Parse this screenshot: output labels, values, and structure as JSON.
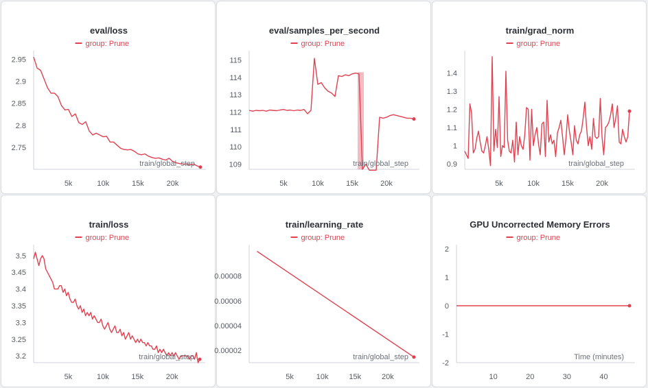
{
  "series_color": "#e0404f",
  "chart_data": [
    {
      "type": "line",
      "title": "eval/loss",
      "legend": "group: Prune",
      "xlabel": "train/global_step",
      "xlim": [
        0,
        24000
      ],
      "ylim": [
        2.7,
        2.96
      ],
      "xticks": [
        5000,
        10000,
        15000,
        20000
      ],
      "xtick_labels": [
        "5k",
        "10k",
        "15k",
        "20k"
      ],
      "yticks": [
        2.75,
        2.8,
        2.85,
        2.9,
        2.95
      ],
      "ytick_labels": [
        "2.75",
        "2.8",
        "2.85",
        "2.9",
        "2.95"
      ],
      "x": [
        0,
        500,
        1000,
        1500,
        2000,
        2500,
        3000,
        3500,
        4000,
        4500,
        5000,
        5500,
        6000,
        6500,
        7000,
        7500,
        8000,
        8500,
        9000,
        9500,
        10000,
        10500,
        11000,
        11500,
        12000,
        12500,
        13000,
        13500,
        14000,
        14500,
        15000,
        15500,
        16000,
        16500,
        17000,
        17500,
        18000,
        18500,
        19000,
        19500,
        20000,
        20500,
        21000,
        21500,
        22000,
        22500,
        23000,
        23500,
        24000
      ],
      "values": [
        2.955,
        2.93,
        2.925,
        2.905,
        2.885,
        2.873,
        2.873,
        2.865,
        2.845,
        2.835,
        2.836,
        2.82,
        2.826,
        2.806,
        2.802,
        2.808,
        2.787,
        2.778,
        2.782,
        2.778,
        2.774,
        2.775,
        2.762,
        2.762,
        2.755,
        2.748,
        2.745,
        2.744,
        2.745,
        2.741,
        2.735,
        2.733,
        2.735,
        2.73,
        2.727,
        2.725,
        2.726,
        2.723,
        2.721,
        2.725,
        2.718,
        2.715,
        2.713,
        2.712,
        2.712,
        2.71,
        2.712,
        2.708,
        2.705
      ],
      "end_marker": true
    },
    {
      "type": "line",
      "title": "eval/samples_per_second",
      "legend": "group: Prune",
      "xlabel": "train/global_step",
      "xlim": [
        0,
        24000
      ],
      "ylim": [
        108.7,
        115.3
      ],
      "xticks": [
        5000,
        10000,
        15000,
        20000
      ],
      "xtick_labels": [
        "5k",
        "10k",
        "15k",
        "20k"
      ],
      "yticks": [
        109,
        110,
        111,
        112,
        113,
        114,
        115
      ],
      "ytick_labels": [
        "109",
        "110",
        "111",
        "112",
        "113",
        "114",
        "115"
      ],
      "x": [
        0,
        500,
        1000,
        1500,
        2000,
        2500,
        3000,
        3500,
        4000,
        4500,
        5000,
        5500,
        6000,
        6500,
        7000,
        7500,
        8000,
        8500,
        9000,
        9500,
        10000,
        10500,
        11000,
        11500,
        12000,
        12500,
        13000,
        13500,
        14000,
        14500,
        15000,
        15500,
        16000,
        16500,
        17000,
        17500,
        18000,
        18500,
        19000,
        19500,
        20000,
        20500,
        21000,
        21500,
        22000,
        22500,
        23000,
        23500,
        24000
      ],
      "values": [
        112.1,
        112.05,
        112.1,
        112.08,
        112.1,
        112.05,
        112.12,
        112.1,
        112.08,
        112.12,
        112.15,
        112.1,
        112.12,
        112.08,
        112.12,
        112.1,
        112.15,
        111.9,
        112.1,
        115.1,
        113.6,
        113.7,
        113.4,
        113.2,
        113.1,
        112.9,
        114.1,
        114.05,
        114.15,
        114.1,
        114.2,
        114.25,
        114.2,
        108.7,
        109.0,
        108.65,
        108.65,
        108.65,
        111.7,
        111.65,
        111.7,
        111.8,
        111.85,
        111.8,
        111.75,
        111.7,
        111.65,
        111.65,
        111.6
      ],
      "band_x_range": [
        15800,
        16700
      ],
      "band_y_range": [
        108.7,
        114.3
      ],
      "end_marker": true
    },
    {
      "type": "line",
      "title": "train/grad_norm",
      "legend": "group: Prune",
      "xlabel": "train/global_step",
      "xlim": [
        0,
        24000
      ],
      "ylim": [
        0.87,
        1.5
      ],
      "xticks": [
        5000,
        10000,
        15000,
        20000
      ],
      "xtick_labels": [
        "5k",
        "10k",
        "15k",
        "20k"
      ],
      "yticks": [
        0.9,
        1,
        1.1,
        1.2,
        1.3,
        1.4
      ],
      "ytick_labels": [
        "0.9",
        "1",
        "1.1",
        "1.2",
        "1.3",
        "1.4"
      ],
      "x": [
        0,
        250,
        500,
        750,
        1000,
        1250,
        1500,
        1750,
        2000,
        2250,
        2500,
        2750,
        3000,
        3250,
        3500,
        3750,
        4000,
        4250,
        4500,
        4750,
        5000,
        5250,
        5500,
        5750,
        6000,
        6250,
        6500,
        6750,
        7000,
        7250,
        7500,
        7750,
        8000,
        8250,
        8500,
        8750,
        9000,
        9250,
        9500,
        9750,
        10000,
        10250,
        10500,
        10750,
        11000,
        11250,
        11500,
        11750,
        12000,
        12250,
        12500,
        12750,
        13000,
        13250,
        13500,
        13750,
        14000,
        14250,
        14500,
        14750,
        15000,
        15250,
        15500,
        15750,
        16000,
        16250,
        16500,
        16750,
        17000,
        17250,
        17500,
        17750,
        18000,
        18250,
        18500,
        18750,
        19000,
        19250,
        19500,
        19750,
        20000,
        20250,
        20500,
        20750,
        21000,
        21250,
        21500,
        21750,
        22000,
        22250,
        22500,
        22750,
        23000,
        23250,
        23500,
        23750,
        24000
      ],
      "values": [
        0.97,
        0.95,
        0.93,
        1.23,
        1.18,
        0.96,
        0.98,
        1.04,
        1.08,
        1.02,
        0.97,
        0.96,
        1.0,
        1.05,
        0.98,
        0.89,
        1.49,
        0.97,
        1.09,
        0.99,
        1.27,
        0.94,
        1.0,
        0.99,
        1.41,
        1.03,
        0.97,
        0.96,
        1.03,
        0.91,
        1.13,
        0.95,
        1.05,
        1.0,
        0.98,
        1.06,
        1.21,
        1.2,
        0.92,
        1.2,
        1.0,
        1.06,
        1.1,
        1.01,
        0.95,
        1.12,
        1.13,
        0.94,
        1.25,
        1.02,
        1.06,
        1.01,
        1.03,
        0.94,
        1.07,
        1.1,
        1.14,
        1.05,
        0.95,
        1.04,
        1.17,
        1.08,
        1.02,
        0.95,
        1.11,
        1.03,
        1.01,
        1.06,
        1.08,
        1.15,
        1.24,
        1.1,
        1.0,
        1.05,
        0.98,
        1.15,
        1.05,
        1.04,
        1.05,
        1.26,
        1.05,
        0.95,
        1.1,
        1.11,
        1.13,
        1.17,
        1.23,
        1.1,
        1.15,
        1.22,
        1.02,
        1.01,
        1.09,
        1.05,
        1.02,
        1.05,
        1.19
      ],
      "end_marker": true
    },
    {
      "type": "line",
      "title": "train/loss",
      "legend": "group: Prune",
      "xlabel": "train/global_step",
      "xlim": [
        0,
        24000
      ],
      "ylim": [
        3.18,
        3.52
      ],
      "xticks": [
        5000,
        10000,
        15000,
        20000
      ],
      "xtick_labels": [
        "5k",
        "10k",
        "15k",
        "20k"
      ],
      "yticks": [
        3.2,
        3.25,
        3.3,
        3.35,
        3.4,
        3.45,
        3.5
      ],
      "ytick_labels": [
        "3.2",
        "3.25",
        "3.3",
        "3.35",
        "3.4",
        "3.45",
        "3.5"
      ],
      "x": [
        0,
        250,
        500,
        750,
        1000,
        1250,
        1500,
        1750,
        2000,
        2250,
        2500,
        2750,
        3000,
        3250,
        3500,
        3750,
        4000,
        4250,
        4500,
        4750,
        5000,
        5250,
        5500,
        5750,
        6000,
        6250,
        6500,
        6750,
        7000,
        7250,
        7500,
        7750,
        8000,
        8250,
        8500,
        8750,
        9000,
        9250,
        9500,
        9750,
        10000,
        10250,
        10500,
        10750,
        11000,
        11250,
        11500,
        11750,
        12000,
        12250,
        12500,
        12750,
        13000,
        13250,
        13500,
        13750,
        14000,
        14250,
        14500,
        14750,
        15000,
        15250,
        15500,
        15750,
        16000,
        16250,
        16500,
        16750,
        17000,
        17250,
        17500,
        17750,
        18000,
        18250,
        18500,
        18750,
        19000,
        19250,
        19500,
        19750,
        20000,
        20250,
        20500,
        20750,
        21000,
        21250,
        21500,
        21750,
        22000,
        22250,
        22500,
        22750,
        23000,
        23250,
        23500,
        23750,
        24000
      ],
      "values": [
        3.49,
        3.51,
        3.49,
        3.47,
        3.49,
        3.5,
        3.49,
        3.46,
        3.45,
        3.44,
        3.43,
        3.42,
        3.4,
        3.4,
        3.4,
        3.41,
        3.41,
        3.39,
        3.4,
        3.38,
        3.39,
        3.37,
        3.36,
        3.36,
        3.37,
        3.35,
        3.34,
        3.35,
        3.33,
        3.34,
        3.32,
        3.33,
        3.32,
        3.33,
        3.31,
        3.32,
        3.31,
        3.3,
        3.3,
        3.31,
        3.29,
        3.28,
        3.29,
        3.3,
        3.28,
        3.27,
        3.28,
        3.29,
        3.27,
        3.27,
        3.28,
        3.26,
        3.27,
        3.25,
        3.26,
        3.27,
        3.25,
        3.26,
        3.25,
        3.24,
        3.25,
        3.24,
        3.25,
        3.24,
        3.24,
        3.23,
        3.24,
        3.23,
        3.23,
        3.22,
        3.22,
        3.23,
        3.21,
        3.22,
        3.21,
        3.22,
        3.21,
        3.2,
        3.21,
        3.2,
        3.21,
        3.2,
        3.21,
        3.2,
        3.19,
        3.2,
        3.2,
        3.2,
        3.2,
        3.2,
        3.19,
        3.2,
        3.2,
        3.19,
        3.21,
        3.18,
        3.19
      ],
      "end_marker": true
    },
    {
      "type": "line",
      "title": "train/learning_rate",
      "legend": "group: Prune",
      "xlabel": "train/global_step",
      "xlim": [
        -1200,
        24000
      ],
      "ylim": [
        1e-05,
        0.000102
      ],
      "xticks": [
        5000,
        10000,
        15000,
        20000
      ],
      "xtick_labels": [
        "5k",
        "10k",
        "15k",
        "20k"
      ],
      "yticks": [
        2e-05,
        4e-05,
        6e-05,
        8e-05
      ],
      "ytick_labels": [
        "0.00002",
        "0.00004",
        "0.00006",
        "0.00008"
      ],
      "x": [
        0,
        24000
      ],
      "values": [
        0.0001,
        1.45e-05
      ],
      "end_marker": true
    },
    {
      "type": "line",
      "title": "GPU Uncorrected Memory Errors",
      "legend": "group: Prune",
      "xlabel": "Time (minutes)",
      "xlim": [
        0,
        47
      ],
      "ylim": [
        -2,
        2
      ],
      "xticks": [
        10,
        20,
        30,
        40
      ],
      "xtick_labels": [
        "10",
        "20",
        "30",
        "40"
      ],
      "yticks": [
        -2,
        -1,
        0,
        1,
        2
      ],
      "ytick_labels": [
        "-2",
        "-1",
        "0",
        "1",
        "2"
      ],
      "x": [
        0,
        47
      ],
      "values": [
        0,
        0
      ],
      "end_marker": true
    }
  ]
}
